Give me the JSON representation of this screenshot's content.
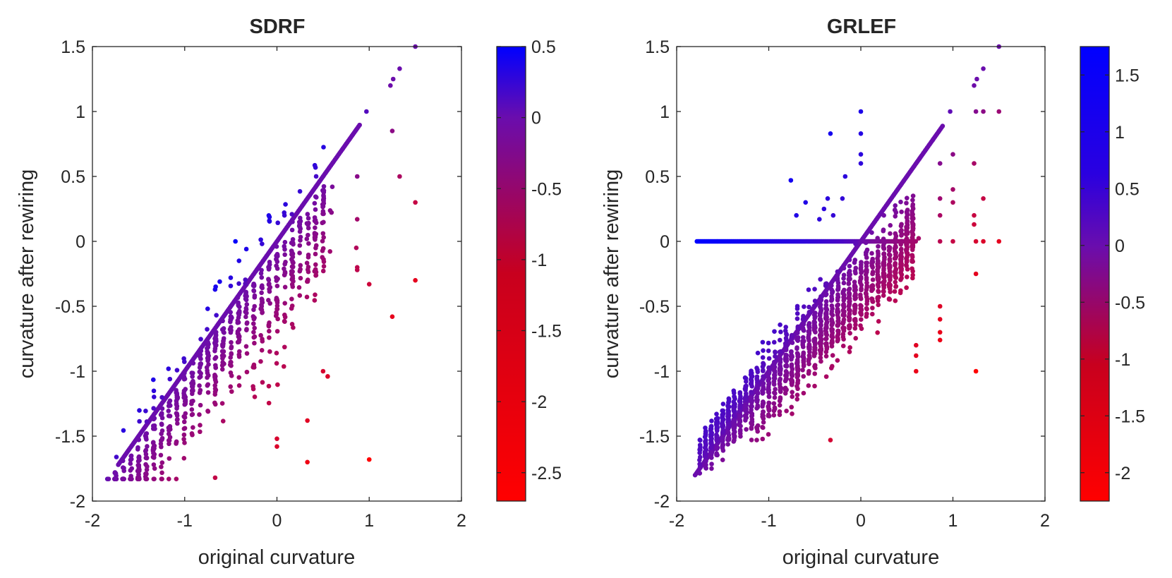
{
  "chart_data": [
    {
      "type": "scatter",
      "title": "SDRF",
      "xlabel": "original curvature",
      "ylabel": "curvature after rewiring",
      "xlim": [
        -2,
        2
      ],
      "ylim": [
        -2,
        1.5
      ],
      "xticks": [
        -2,
        -1,
        0,
        1,
        2
      ],
      "yticks": [
        -2,
        -1.5,
        -1,
        -0.5,
        0,
        0.5,
        1,
        1.5
      ],
      "xtick_labels": [
        "-2",
        "-1",
        "0",
        "1",
        "2"
      ],
      "ytick_labels": [
        "-2",
        "-1.5",
        "-1",
        "-0.5",
        "0",
        "0.5",
        "1",
        "1.5"
      ],
      "colorbar": {
        "range": [
          -2.7,
          0.5
        ],
        "ticks": [
          0.5,
          0,
          -0.5,
          -1,
          -1.5,
          -2,
          -2.5
        ],
        "tick_labels": [
          "0.5",
          "0",
          "-0.5",
          "-1",
          "-1.5",
          "-2",
          "-2.5"
        ],
        "low_color": "#ff0000",
        "mid_color": "#6a0dad",
        "high_color": "#0000ff"
      },
      "color_encoding": "difference (after - original)",
      "points": {
        "diagonal": {
          "x_from": -1.72,
          "x_to": 0.9,
          "slope": 1
        },
        "upper_diagonal_points": [
          [
            0.97,
            1.0
          ],
          [
            1.23,
            1.2
          ],
          [
            1.26,
            1.25
          ],
          [
            1.33,
            1.33
          ],
          [
            1.5,
            1.5
          ]
        ],
        "scattered_low_points": [
          [
            0.87,
            0.5
          ],
          [
            0.87,
            0.17
          ],
          [
            0.87,
            -0.2
          ],
          [
            0.87,
            -0.22
          ],
          [
            0.86,
            -0.05
          ],
          [
            1.0,
            -0.33
          ],
          [
            1.0,
            -1.68
          ],
          [
            1.25,
            0.85
          ],
          [
            1.25,
            -0.58
          ],
          [
            1.33,
            0.5
          ],
          [
            1.5,
            0.3
          ],
          [
            1.5,
            -0.3
          ],
          [
            0.33,
            -1.38
          ],
          [
            0.33,
            -1.7
          ],
          [
            -0.67,
            -1.82
          ],
          [
            0.0,
            -1.52
          ],
          [
            0.0,
            -1.58
          ],
          [
            -0.45,
            0.0
          ],
          [
            -0.62,
            -0.31
          ],
          [
            0.5,
            -1.0
          ],
          [
            0.55,
            -1.04
          ],
          [
            0.6,
            0.42
          ]
        ],
        "generated_cloud": {
          "n": 760,
          "x_range": [
            -1.8,
            0.55
          ],
          "seed": 7
        }
      }
    },
    {
      "type": "scatter",
      "title": "GRLEF",
      "xlabel": "original curvature",
      "ylabel": "curvature after rewiring",
      "xlim": [
        -2,
        2
      ],
      "ylim": [
        -2,
        1.5
      ],
      "xticks": [
        -2,
        -1,
        0,
        1,
        2
      ],
      "yticks": [
        -2,
        -1.5,
        -1,
        -0.5,
        0,
        0.5,
        1,
        1.5
      ],
      "xtick_labels": [
        "-2",
        "-1",
        "0",
        "1",
        "2"
      ],
      "ytick_labels": [
        "-2",
        "-1.5",
        "-1",
        "-0.5",
        "0",
        "0.5",
        "1",
        "1.5"
      ],
      "colorbar": {
        "range": [
          -2.25,
          1.75
        ],
        "ticks": [
          1.5,
          1,
          0.5,
          0,
          -0.5,
          -1,
          -1.5,
          -2
        ],
        "tick_labels": [
          "1.5",
          "1",
          "0.5",
          "0",
          "-0.5",
          "-1",
          "-1.5",
          "-2"
        ],
        "low_color": "#ff0000",
        "mid_color": "#6a0dad",
        "high_color": "#0000ff"
      },
      "color_encoding": "difference (after - original)",
      "points": {
        "diagonal": {
          "x_from": -1.8,
          "x_to": 0.9,
          "slope": 1
        },
        "zero_row": {
          "y": 0,
          "x_from": -1.78,
          "x_to": 0.6
        },
        "upper_diagonal_points": [
          [
            0.97,
            1.0
          ],
          [
            1.23,
            1.2
          ],
          [
            1.26,
            1.25
          ],
          [
            1.33,
            1.33
          ],
          [
            1.5,
            1.5
          ]
        ],
        "scattered_points": [
          [
            0.0,
            1.0
          ],
          [
            0.0,
            0.83
          ],
          [
            0.0,
            0.67
          ],
          [
            0.0,
            0.6
          ],
          [
            -0.17,
            0.5
          ],
          [
            -0.33,
            0.83
          ],
          [
            -0.76,
            0.47
          ],
          [
            -0.6,
            0.3
          ],
          [
            -0.4,
            0.25
          ],
          [
            -0.3,
            0.2
          ],
          [
            -0.7,
            0.2
          ],
          [
            -0.45,
            0.17
          ],
          [
            -0.2,
            0.33
          ],
          [
            -0.36,
            0.33
          ],
          [
            0.25,
            0.2
          ],
          [
            1.23,
            0.6
          ],
          [
            1.0,
            0.67
          ],
          [
            0.86,
            0.6
          ],
          [
            0.86,
            0.33
          ],
          [
            0.86,
            0.2
          ],
          [
            0.86,
            0.0
          ],
          [
            1.0,
            0.4
          ],
          [
            1.0,
            0.3
          ],
          [
            1.23,
            0.2
          ],
          [
            1.23,
            0.13
          ],
          [
            1.25,
            1.0
          ],
          [
            1.33,
            1.0
          ],
          [
            1.5,
            1.0
          ],
          [
            1.33,
            0.33
          ],
          [
            1.25,
            -0.25
          ],
          [
            1.25,
            -1.0
          ],
          [
            1.25,
            0.0
          ],
          [
            1.33,
            0.0
          ],
          [
            1.5,
            0.0
          ],
          [
            1.0,
            0.0
          ],
          [
            0.86,
            -0.5
          ],
          [
            0.86,
            -0.6
          ],
          [
            0.86,
            -0.76
          ],
          [
            0.86,
            -0.7
          ],
          [
            -0.33,
            -1.53
          ],
          [
            0.6,
            -0.8
          ],
          [
            0.6,
            -0.88
          ],
          [
            0.6,
            -1.0
          ]
        ],
        "generated_cloud": {
          "n": 1500,
          "x_range": [
            -1.75,
            0.6
          ],
          "seed": 13
        }
      }
    }
  ]
}
